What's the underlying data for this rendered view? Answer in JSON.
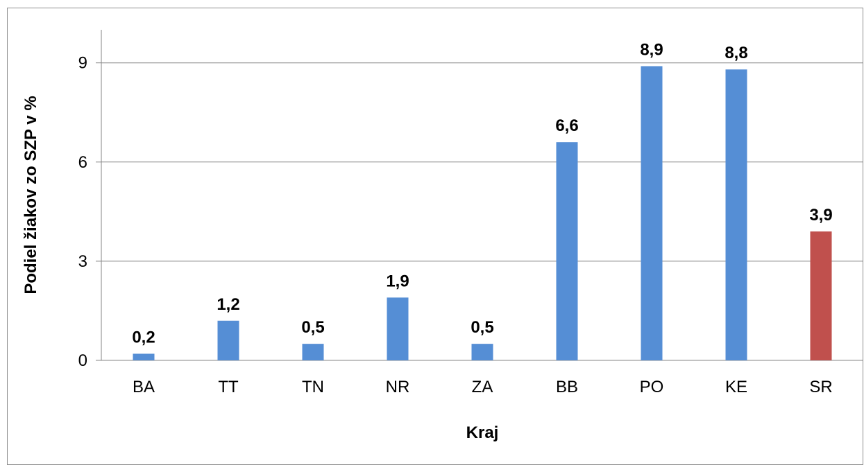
{
  "chart_data": {
    "type": "bar",
    "title": "",
    "xlabel": "Kraj",
    "ylabel": "Podiel žiakov zo SZP v %",
    "categories": [
      "BA",
      "TT",
      "TN",
      "NR",
      "ZA",
      "BB",
      "PO",
      "KE",
      "SR"
    ],
    "values": [
      0.2,
      1.2,
      0.5,
      1.9,
      0.5,
      6.6,
      8.9,
      8.8,
      3.9
    ],
    "data_labels": [
      "0,2",
      "1,2",
      "0,5",
      "1,9",
      "0,5",
      "6,6",
      "8,9",
      "8,8",
      "3,9"
    ],
    "yticks": [
      0,
      3,
      6,
      9
    ],
    "ylim": [
      0,
      10
    ],
    "grid": true,
    "legend": "none",
    "colors": {
      "default_bar": "#558ed5",
      "highlight_bar": "#c0504d",
      "highlight_category": "SR",
      "gridline": "#868686"
    }
  }
}
